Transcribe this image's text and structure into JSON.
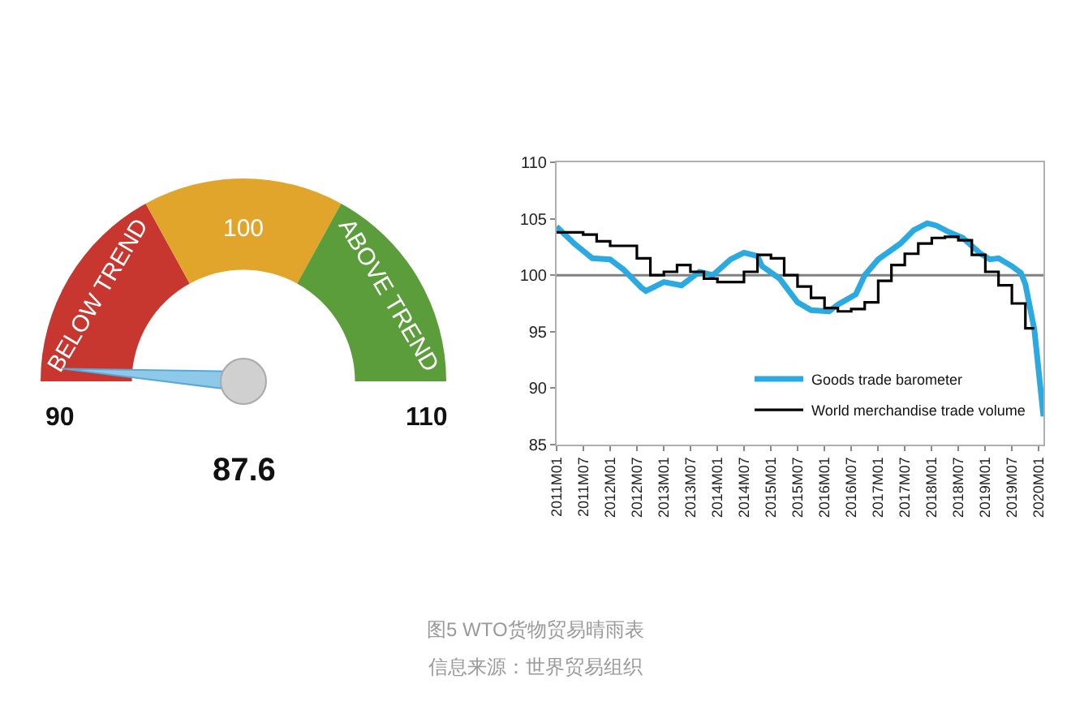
{
  "chart_data": [
    {
      "type": "donut",
      "categories": [
        "BELOW TREND",
        "100",
        "ABOVE TREND"
      ],
      "values": [
        34,
        32,
        34
      ],
      "colors": [
        "#c8372f",
        "#e0a52a",
        "#5b9d3a"
      ],
      "needle": "BELOW TREND",
      "annotations": [
        "90",
        "110",
        "87.6"
      ]
    },
    {
      "type": "line",
      "xlim": [
        "2011-01",
        "2020-02"
      ],
      "ylim": [
        85,
        110
      ],
      "yticks": [
        85,
        90,
        95,
        100,
        105,
        110
      ],
      "xticks": [
        {
          "value": "2011-01",
          "label": "2011M01"
        },
        {
          "value": "2011-07",
          "label": "2011M07"
        },
        {
          "value": "2012-01",
          "label": "2012M01"
        },
        {
          "value": "2012-07",
          "label": "2012M07"
        },
        {
          "value": "2013-01",
          "label": "2013M01"
        },
        {
          "value": "2013-07",
          "label": "2013M07"
        },
        {
          "value": "2014-01",
          "label": "2014M01"
        },
        {
          "value": "2014-07",
          "label": "2014M07"
        },
        {
          "value": "2015-01",
          "label": "2015M01"
        },
        {
          "value": "2015-07",
          "label": "2015M07"
        },
        {
          "value": "2016-01",
          "label": "2016M01"
        },
        {
          "value": "2016-07",
          "label": "2016M07"
        },
        {
          "value": "2017-01",
          "label": "2017M01"
        },
        {
          "value": "2017-07",
          "label": "2017M07"
        },
        {
          "value": "2018-01",
          "label": "2018M01"
        },
        {
          "value": "2018-07",
          "label": "2018M07"
        },
        {
          "value": "2019-01",
          "label": "2019M01"
        },
        {
          "value": "2019-07",
          "label": "2019M07"
        },
        {
          "value": "2020-01",
          "label": "2020M01"
        }
      ],
      "grid": false,
      "legend": "bottom right",
      "ref_lines": [
        {
          "axis": "y",
          "value": 100,
          "color": "#808080"
        }
      ],
      "annotations": [
        "图5 WTO货物贸易晴雨表",
        "信息来源：世界贸易组织"
      ],
      "series": [
        {
          "name": "Goods trade barometer",
          "type": "line",
          "color": "#2aaae0",
          "x": [
            "2011-01",
            "2011-05",
            "2011-09",
            "2012-01",
            "2012-04",
            "2012-08",
            "2012-09",
            "2013-01",
            "2013-05",
            "2013-09",
            "2013-12",
            "2014-04",
            "2014-07",
            "2014-10",
            "2014-11",
            "2015-03",
            "2015-07",
            "2015-10",
            "2016-02",
            "2016-04",
            "2016-08",
            "2016-10",
            "2017-01",
            "2017-06",
            "2017-09",
            "2017-12",
            "2018-02",
            "2018-05",
            "2018-08",
            "2018-12",
            "2019-02",
            "2019-04",
            "2019-07",
            "2019-09",
            "2019-10",
            "2019-12",
            "2020-02"
          ],
          "values": [
            104.3,
            102.8,
            101.5,
            101.4,
            100.5,
            98.9,
            98.6,
            99.4,
            99.1,
            100.3,
            100.0,
            101.4,
            102.0,
            101.7,
            100.8,
            99.7,
            97.6,
            96.9,
            96.8,
            97.4,
            98.3,
            100.0,
            101.4,
            102.8,
            104.0,
            104.6,
            104.4,
            103.8,
            103.3,
            101.9,
            101.4,
            101.5,
            100.8,
            100.2,
            99.2,
            95.2,
            87.5
          ]
        },
        {
          "name": "World merchandise trade volume",
          "type": "step",
          "color": "#000000",
          "x": [
            "2011-01",
            "2011-04",
            "2011-07",
            "2011-10",
            "2012-01",
            "2012-04",
            "2012-07",
            "2012-10",
            "2013-01",
            "2013-04",
            "2013-07",
            "2013-10",
            "2014-01",
            "2014-04",
            "2014-07",
            "2014-10",
            "2015-01",
            "2015-04",
            "2015-07",
            "2015-10",
            "2016-01",
            "2016-04",
            "2016-07",
            "2016-10",
            "2017-01",
            "2017-04",
            "2017-07",
            "2017-10",
            "2018-01",
            "2018-04",
            "2018-07",
            "2018-10",
            "2019-01",
            "2019-04",
            "2019-07",
            "2019-10",
            "2019-12"
          ],
          "values": [
            103.8,
            103.8,
            103.6,
            103.0,
            102.6,
            102.6,
            101.5,
            100.0,
            100.3,
            100.9,
            100.3,
            99.7,
            99.4,
            99.4,
            100.3,
            101.8,
            101.5,
            100.0,
            99.0,
            98.0,
            97.1,
            96.8,
            97.0,
            97.6,
            99.5,
            100.9,
            101.9,
            102.8,
            103.3,
            103.4,
            103.1,
            101.8,
            100.3,
            99.1,
            97.5,
            95.3,
            95.3
          ]
        }
      ]
    }
  ]
}
